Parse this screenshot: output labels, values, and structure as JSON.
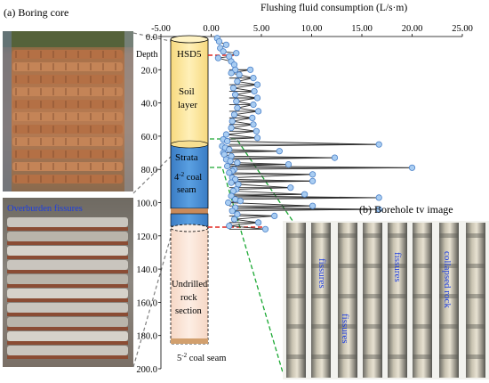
{
  "panel_a": {
    "label": "(a)  Boring core",
    "overburden_label": "Overburden fissures"
  },
  "panel_b": {
    "label": "(b)  Borehole tv image",
    "strip_labels": [
      "fissures",
      "fissures",
      "fissures",
      "collapsed rock"
    ]
  },
  "column": {
    "borehole_label": "HSD5",
    "depth_label": "Depth",
    "layers": [
      {
        "name": "Soil layer",
        "line1": "Soil",
        "line2": "layer",
        "color": "#fde59a"
      },
      {
        "name": "Strata",
        "color": "#4a90d6"
      },
      {
        "name": "4-2 coal seam",
        "line1": "4",
        "sup": "-2",
        "line1b": " coal",
        "line2": "seam",
        "color": "#4a90d6"
      },
      {
        "name": "Undrilled rock section",
        "line1": "Undrilled",
        "line2": "rock",
        "line3": "section",
        "color": "#fbe3d6"
      }
    ],
    "bottom_label": {
      "pre": "5",
      "sup": "-2",
      "post": " coal seam"
    }
  },
  "colors": {
    "marker_fill": "#a9cdf2",
    "marker_stroke": "#4a80c8",
    "red_dash": "#e0261e",
    "green_dash": "#1aa832",
    "gray_dash": "#808080"
  },
  "chart_data": {
    "type": "scatter",
    "title": "Flushing fluid consumption (L/s·m)",
    "x_ticks": [
      "-5.00",
      "0.00",
      "5.00",
      "10.00",
      "15.00",
      "20.00",
      "25.00"
    ],
    "y_ticks": [
      "0.0",
      "20.0",
      "40.0",
      "60.0",
      "80.0",
      "100.0",
      "120.0",
      "140.0",
      "160.0",
      "180.0",
      "200.0"
    ],
    "xlim": [
      -5,
      25
    ],
    "ylim": [
      0,
      200
    ],
    "y_inverted": true,
    "points": [
      [
        0.6,
        1
      ],
      [
        0.8,
        3
      ],
      [
        1.5,
        5
      ],
      [
        0.9,
        7
      ],
      [
        1.2,
        9
      ],
      [
        2.5,
        10
      ],
      [
        1.8,
        12
      ],
      [
        0.7,
        13
      ],
      [
        2.0,
        15
      ],
      [
        2.3,
        17
      ],
      [
        2.4,
        20
      ],
      [
        3.9,
        20
      ],
      [
        2.0,
        22
      ],
      [
        2.8,
        23
      ],
      [
        4.2,
        25
      ],
      [
        2.6,
        27
      ],
      [
        4.6,
        29
      ],
      [
        2.2,
        31
      ],
      [
        4.3,
        33
      ],
      [
        2.4,
        35
      ],
      [
        4.6,
        37
      ],
      [
        2.5,
        39
      ],
      [
        4.2,
        41
      ],
      [
        2.6,
        43
      ],
      [
        4.7,
        45
      ],
      [
        2.3,
        47
      ],
      [
        4.1,
        49
      ],
      [
        2.1,
        51
      ],
      [
        4.2,
        53
      ],
      [
        2.0,
        55
      ],
      [
        4.5,
        57
      ],
      [
        1.5,
        59
      ],
      [
        4.6,
        61
      ],
      [
        1.2,
        62
      ],
      [
        1.6,
        63
      ],
      [
        16.7,
        65
      ],
      [
        1.1,
        66
      ],
      [
        1.4,
        67
      ],
      [
        1.8,
        68
      ],
      [
        6.8,
        69
      ],
      [
        1.2,
        70
      ],
      [
        1.3,
        71
      ],
      [
        2.0,
        72
      ],
      [
        12.3,
        73
      ],
      [
        1.5,
        74
      ],
      [
        1.9,
        75
      ],
      [
        2.6,
        76
      ],
      [
        7.7,
        77
      ],
      [
        1.6,
        78
      ],
      [
        20.0,
        79
      ],
      [
        2.3,
        80
      ],
      [
        2.1,
        81
      ],
      [
        1.8,
        82
      ],
      [
        10.1,
        83
      ],
      [
        2.1,
        85
      ],
      [
        2.4,
        86
      ],
      [
        10.1,
        87
      ],
      [
        2.0,
        88
      ],
      [
        2.7,
        89
      ],
      [
        7.9,
        91
      ],
      [
        2.5,
        92
      ],
      [
        2.2,
        93
      ],
      [
        9.3,
        95
      ],
      [
        2.0,
        96
      ],
      [
        16.7,
        97
      ],
      [
        2.4,
        98
      ],
      [
        2.9,
        99
      ],
      [
        1.7,
        100
      ],
      [
        10.1,
        102
      ],
      [
        2.4,
        103
      ],
      [
        16.7,
        104
      ],
      [
        2.1,
        105
      ],
      [
        2.6,
        107
      ],
      [
        6.3,
        108
      ],
      [
        2.3,
        110
      ],
      [
        4.7,
        112
      ],
      [
        1.8,
        114
      ],
      [
        5.4,
        116
      ]
    ]
  }
}
